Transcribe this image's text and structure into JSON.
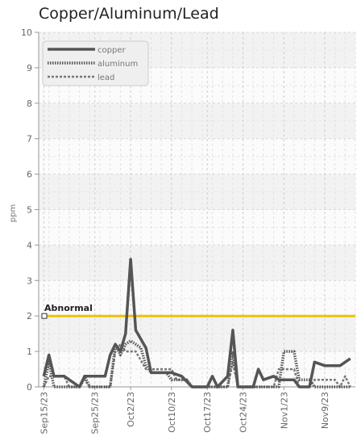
{
  "chart_data": {
    "type": "line",
    "title": "Copper/Aluminum/Lead",
    "ylabel": "ppm",
    "xlabel": "",
    "ylim": [
      0,
      10
    ],
    "yticks": [
      0,
      1,
      2,
      3,
      4,
      5,
      6,
      7,
      8,
      9,
      10
    ],
    "xlim": [
      "2023-09-14",
      "2023-11-15"
    ],
    "xticks": [
      {
        "date": "2023-09-15",
        "label": "Sep15/23"
      },
      {
        "date": "2023-09-25",
        "label": "Sep25/23"
      },
      {
        "date": "2023-10-02",
        "label": "Oct2/23"
      },
      {
        "date": "2023-10-10",
        "label": "Oct10/23"
      },
      {
        "date": "2023-10-17",
        "label": "Oct17/23"
      },
      {
        "date": "2023-10-24",
        "label": "Oct24/23"
      },
      {
        "date": "2023-11-01",
        "label": "Nov1/23"
      },
      {
        "date": "2023-11-09",
        "label": "Nov9/23"
      }
    ],
    "grid": true,
    "legend": "top-left",
    "reference_line": {
      "label": "Abnormal",
      "value": 2,
      "color": "#f2c200"
    },
    "series": [
      {
        "name": "copper",
        "style": "solid",
        "color": "#555555",
        "points": [
          [
            "2023-09-15",
            0.3
          ],
          [
            "2023-09-16",
            0.9
          ],
          [
            "2023-09-17",
            0.3
          ],
          [
            "2023-09-19",
            0.3
          ],
          [
            "2023-09-22",
            0.0
          ],
          [
            "2023-09-23",
            0.3
          ],
          [
            "2023-09-27",
            0.3
          ],
          [
            "2023-09-28",
            0.9
          ],
          [
            "2023-09-29",
            1.2
          ],
          [
            "2023-09-30",
            1.0
          ],
          [
            "2023-10-01",
            1.5
          ],
          [
            "2023-10-02",
            3.6
          ],
          [
            "2023-10-03",
            1.6
          ],
          [
            "2023-10-05",
            1.1
          ],
          [
            "2023-10-06",
            0.4
          ],
          [
            "2023-10-10",
            0.4
          ],
          [
            "2023-10-12",
            0.3
          ],
          [
            "2023-10-14",
            0.0
          ],
          [
            "2023-10-17",
            0.0
          ],
          [
            "2023-10-18",
            0.3
          ],
          [
            "2023-10-19",
            0.0
          ],
          [
            "2023-10-21",
            0.3
          ],
          [
            "2023-10-22",
            1.6
          ],
          [
            "2023-10-23",
            0.0
          ],
          [
            "2023-10-26",
            0.0
          ],
          [
            "2023-10-27",
            0.5
          ],
          [
            "2023-10-28",
            0.2
          ],
          [
            "2023-10-30",
            0.3
          ],
          [
            "2023-10-31",
            0.2
          ],
          [
            "2023-11-03",
            0.2
          ],
          [
            "2023-11-04",
            0.0
          ],
          [
            "2023-11-06",
            0.0
          ],
          [
            "2023-11-07",
            0.7
          ],
          [
            "2023-11-09",
            0.6
          ],
          [
            "2023-11-12",
            0.6
          ],
          [
            "2023-11-14",
            0.8
          ]
        ]
      },
      {
        "name": "aluminum",
        "style": "dotted",
        "color": "#555555",
        "points": [
          [
            "2023-09-15",
            0.0
          ],
          [
            "2023-09-16",
            0.7
          ],
          [
            "2023-09-17",
            0.0
          ],
          [
            "2023-09-22",
            0.0
          ],
          [
            "2023-09-23",
            0.3
          ],
          [
            "2023-09-24",
            0.0
          ],
          [
            "2023-09-28",
            0.0
          ],
          [
            "2023-09-29",
            1.2
          ],
          [
            "2023-09-30",
            0.9
          ],
          [
            "2023-10-01",
            1.2
          ],
          [
            "2023-10-02",
            1.3
          ],
          [
            "2023-10-04",
            1.1
          ],
          [
            "2023-10-05",
            0.6
          ],
          [
            "2023-10-06",
            0.4
          ],
          [
            "2023-10-09",
            0.4
          ],
          [
            "2023-10-10",
            0.2
          ],
          [
            "2023-10-13",
            0.2
          ],
          [
            "2023-10-14",
            0.0
          ],
          [
            "2023-10-21",
            0.0
          ],
          [
            "2023-10-22",
            1.0
          ],
          [
            "2023-10-23",
            0.0
          ],
          [
            "2023-10-31",
            0.0
          ],
          [
            "2023-11-01",
            1.0
          ],
          [
            "2023-11-03",
            1.0
          ],
          [
            "2023-11-04",
            0.2
          ],
          [
            "2023-11-06",
            0.2
          ],
          [
            "2023-11-07",
            0.0
          ],
          [
            "2023-11-14",
            0.0
          ]
        ]
      },
      {
        "name": "lead",
        "style": "dashed",
        "color": "#777777",
        "points": [
          [
            "2023-09-15",
            0.0
          ],
          [
            "2023-09-16",
            0.3
          ],
          [
            "2023-09-19",
            0.3
          ],
          [
            "2023-09-20",
            0.0
          ],
          [
            "2023-09-22",
            0.0
          ],
          [
            "2023-09-23",
            0.2
          ],
          [
            "2023-09-24",
            0.0
          ],
          [
            "2023-09-28",
            0.0
          ],
          [
            "2023-09-29",
            1.0
          ],
          [
            "2023-09-30",
            1.2
          ],
          [
            "2023-10-01",
            1.0
          ],
          [
            "2023-10-03",
            1.0
          ],
          [
            "2023-10-05",
            0.5
          ],
          [
            "2023-10-08",
            0.5
          ],
          [
            "2023-10-10",
            0.5
          ],
          [
            "2023-10-11",
            0.2
          ],
          [
            "2023-10-13",
            0.2
          ],
          [
            "2023-10-14",
            0.0
          ],
          [
            "2023-10-21",
            0.0
          ],
          [
            "2023-10-22",
            0.7
          ],
          [
            "2023-10-23",
            0.0
          ],
          [
            "2023-10-30",
            0.0
          ],
          [
            "2023-10-31",
            0.5
          ],
          [
            "2023-11-03",
            0.5
          ],
          [
            "2023-11-04",
            0.0
          ],
          [
            "2023-11-06",
            0.0
          ],
          [
            "2023-11-07",
            0.2
          ],
          [
            "2023-11-11",
            0.2
          ],
          [
            "2023-11-12",
            0.0
          ],
          [
            "2023-11-13",
            0.3
          ],
          [
            "2023-11-14",
            0.0
          ]
        ]
      }
    ]
  }
}
